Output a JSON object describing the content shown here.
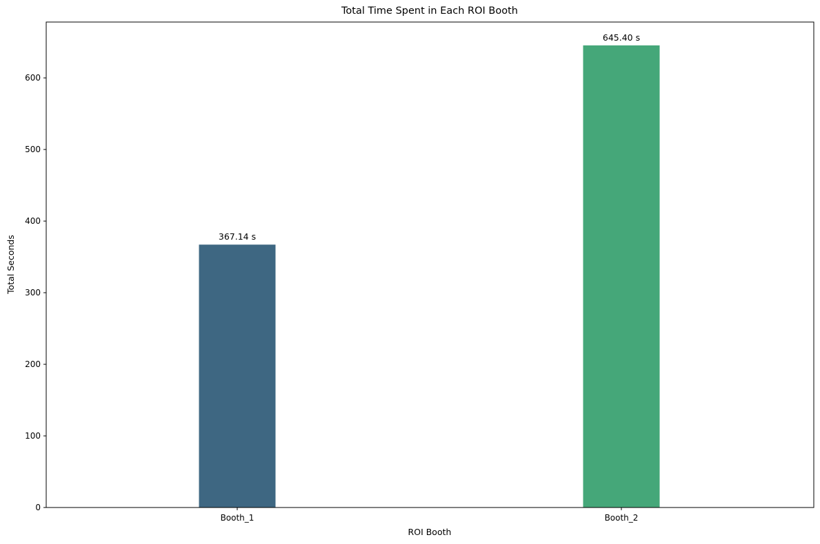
{
  "chart_data": {
    "type": "bar",
    "title": "Total Time Spent in Each ROI Booth",
    "xlabel": "ROI Booth",
    "ylabel": "Total Seconds",
    "categories": [
      "Booth_1",
      "Booth_2"
    ],
    "values": [
      367.14,
      645.4
    ],
    "value_labels": [
      "367.14 s",
      "645.40 s"
    ],
    "colors": [
      "#3e6782",
      "#45a779"
    ],
    "ylim": [
      0,
      678
    ],
    "yticks": [
      0,
      100,
      200,
      300,
      400,
      500,
      600
    ],
    "grid": false,
    "legend": "none"
  }
}
